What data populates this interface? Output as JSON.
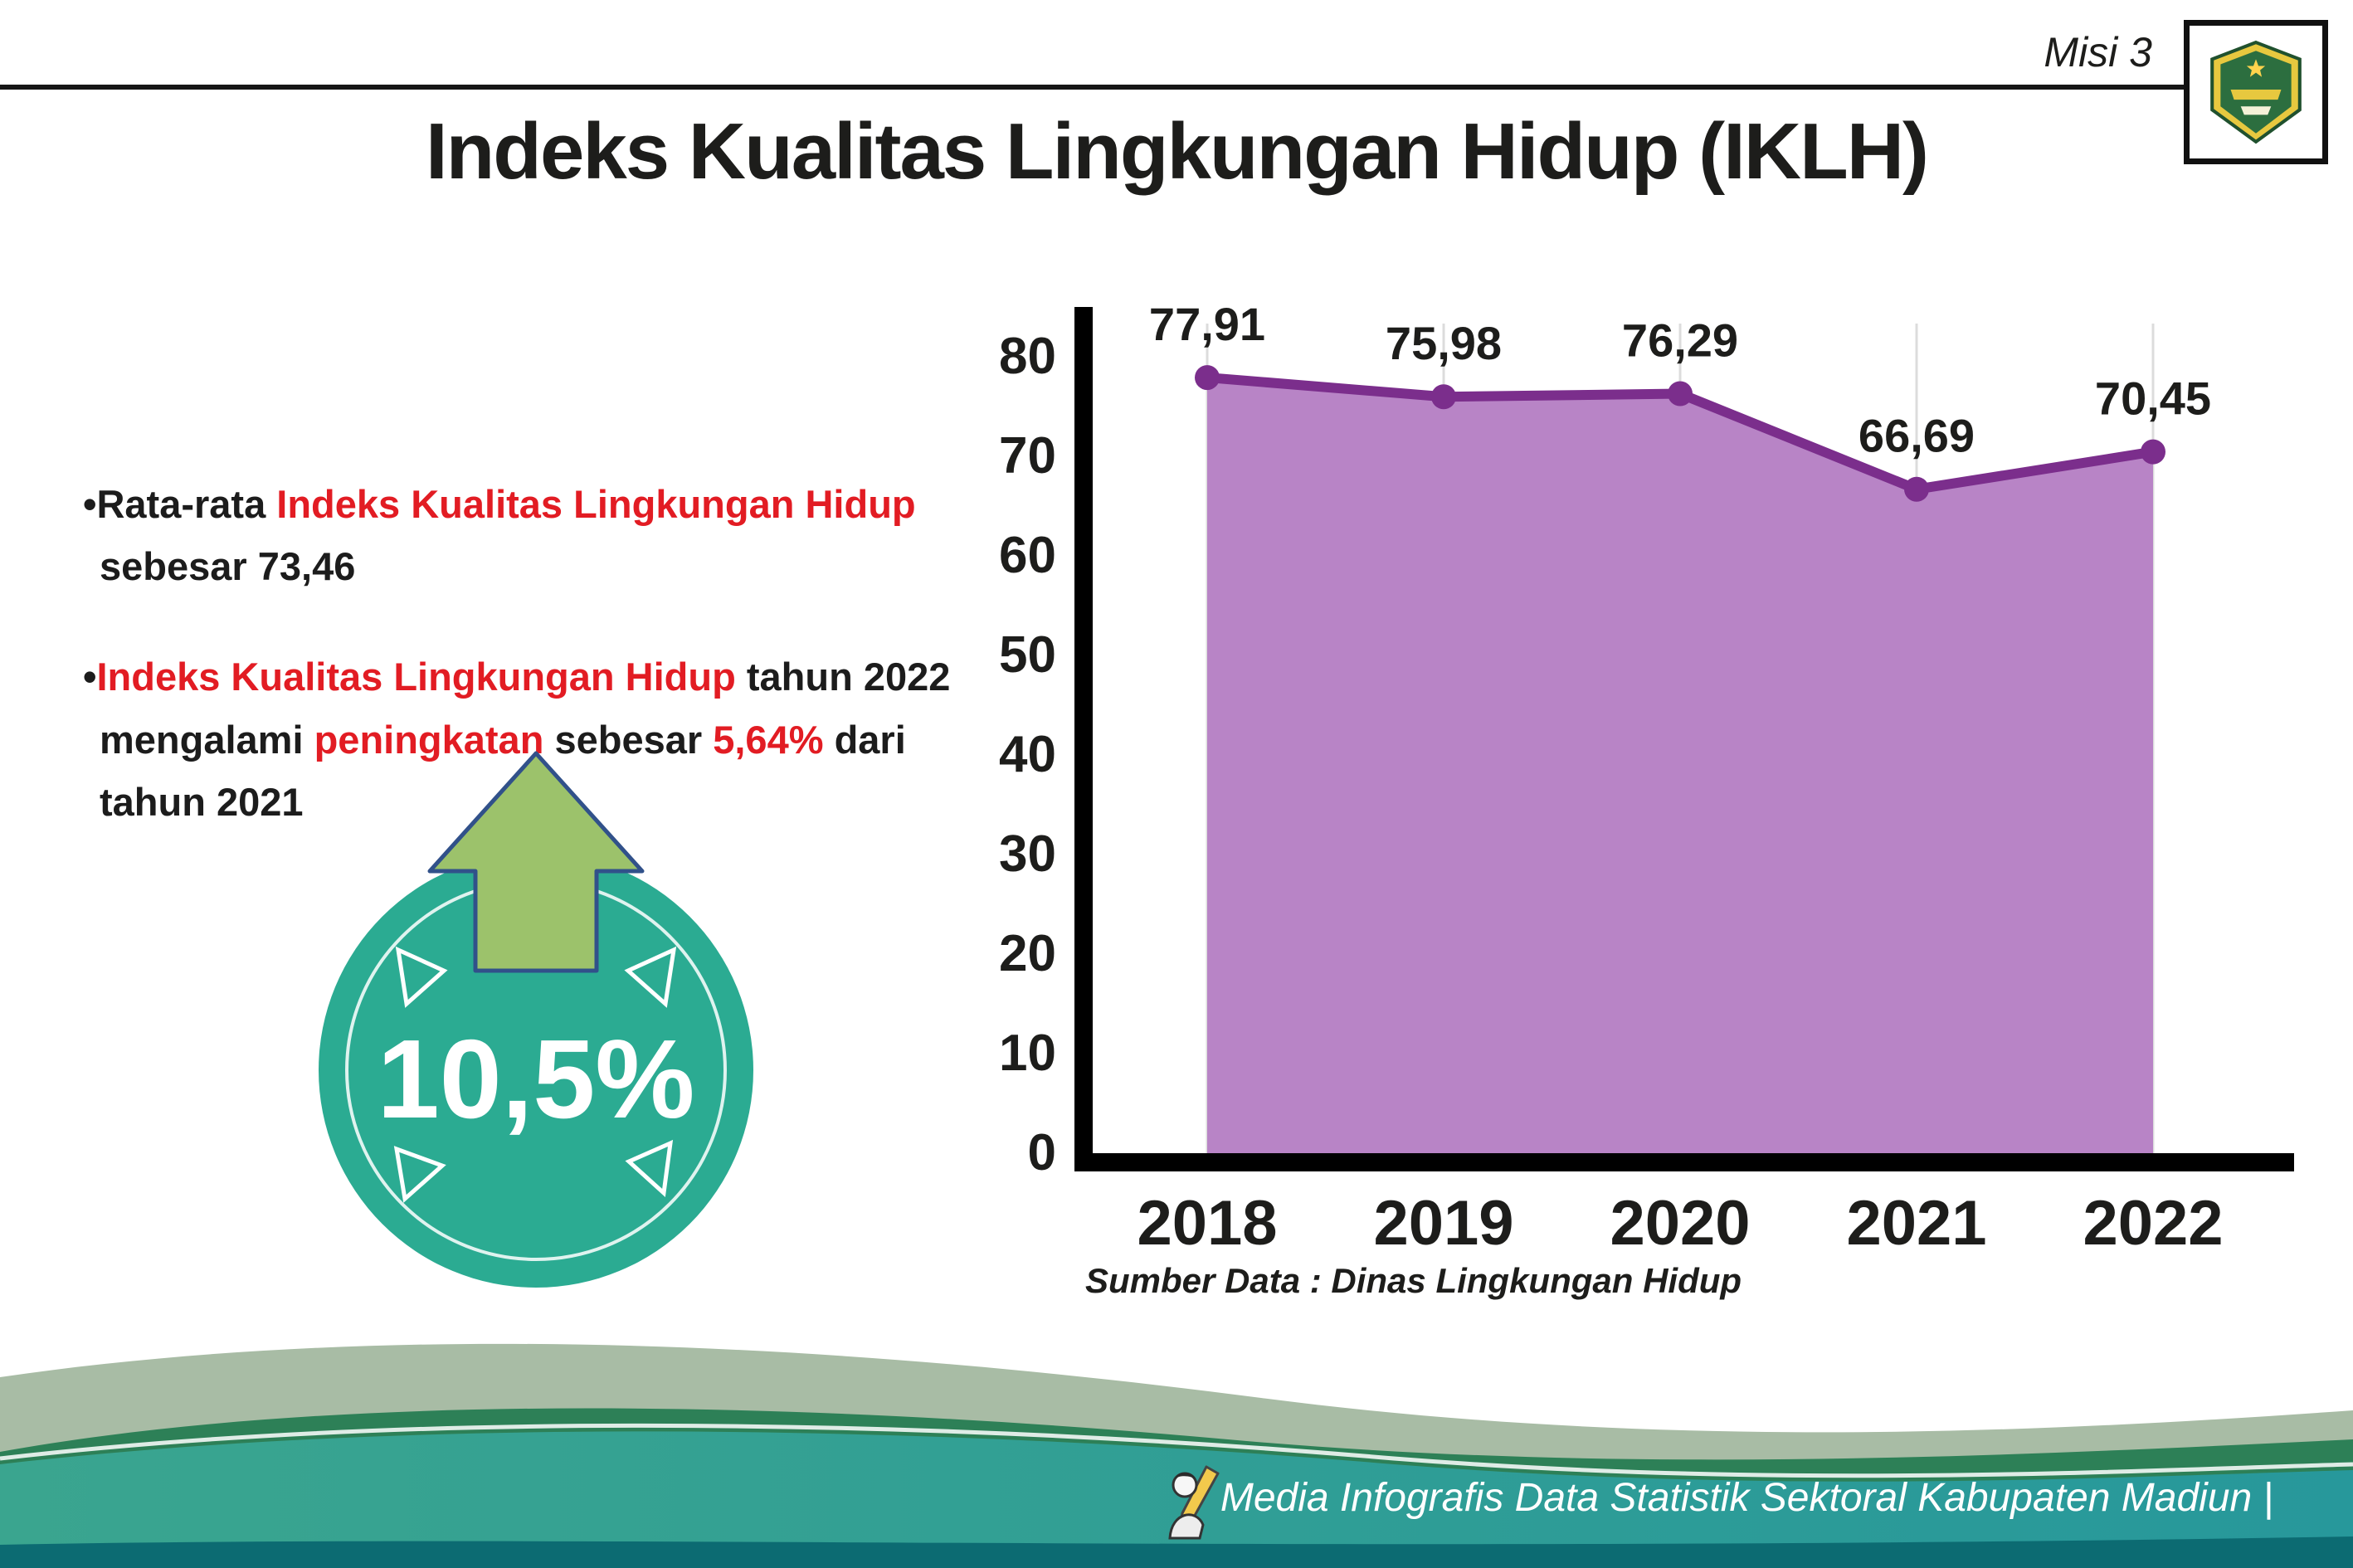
{
  "header": {
    "misi_label": "Misi 3",
    "title": "Indeks Kualitas Lingkungan Hidup (IKLH)",
    "logo_name": "kabupaten-madiun-emblem"
  },
  "bullets": {
    "marker": "•",
    "item1": {
      "part1": "Rata-rata ",
      "part2_red": "Indeks Kualitas Lingkungan Hidup",
      "part3": " sebesar 73,46"
    },
    "item2": {
      "part1_red": "Indeks Kualitas Lingkungan Hidup",
      "part2": " tahun 2022 mengalami ",
      "part3_red": "peningkatan",
      "part4": " sebesar ",
      "part5_red": "5,64%",
      "part6": " dari tahun 2021"
    }
  },
  "badge": {
    "value": "10,5%",
    "circle_color": "#2bab92",
    "arrow_color": "#9cc26b"
  },
  "chart_data": {
    "type": "area",
    "title": "Indeks Kualitas Lingkungan Hidup (IKLH)",
    "categories": [
      "2018",
      "2019",
      "2020",
      "2021",
      "2022"
    ],
    "values": [
      77.91,
      75.98,
      76.29,
      66.69,
      70.45
    ],
    "value_labels": [
      "77,91",
      "75,98",
      "76,29",
      "66,69",
      "70,45"
    ],
    "ylim": [
      0,
      80
    ],
    "yticks": [
      0,
      10,
      20,
      30,
      40,
      50,
      60,
      70,
      80
    ],
    "grid": "vertical-light",
    "legend": "none",
    "line_color": "#7b2e8c",
    "fill_color": "#b884c6",
    "source": "Sumber Data : Dinas Lingkungan Hidup"
  },
  "footer": {
    "credit": "Media Infografis Data Statistik Sektoral Kabupaten Madiun |"
  }
}
